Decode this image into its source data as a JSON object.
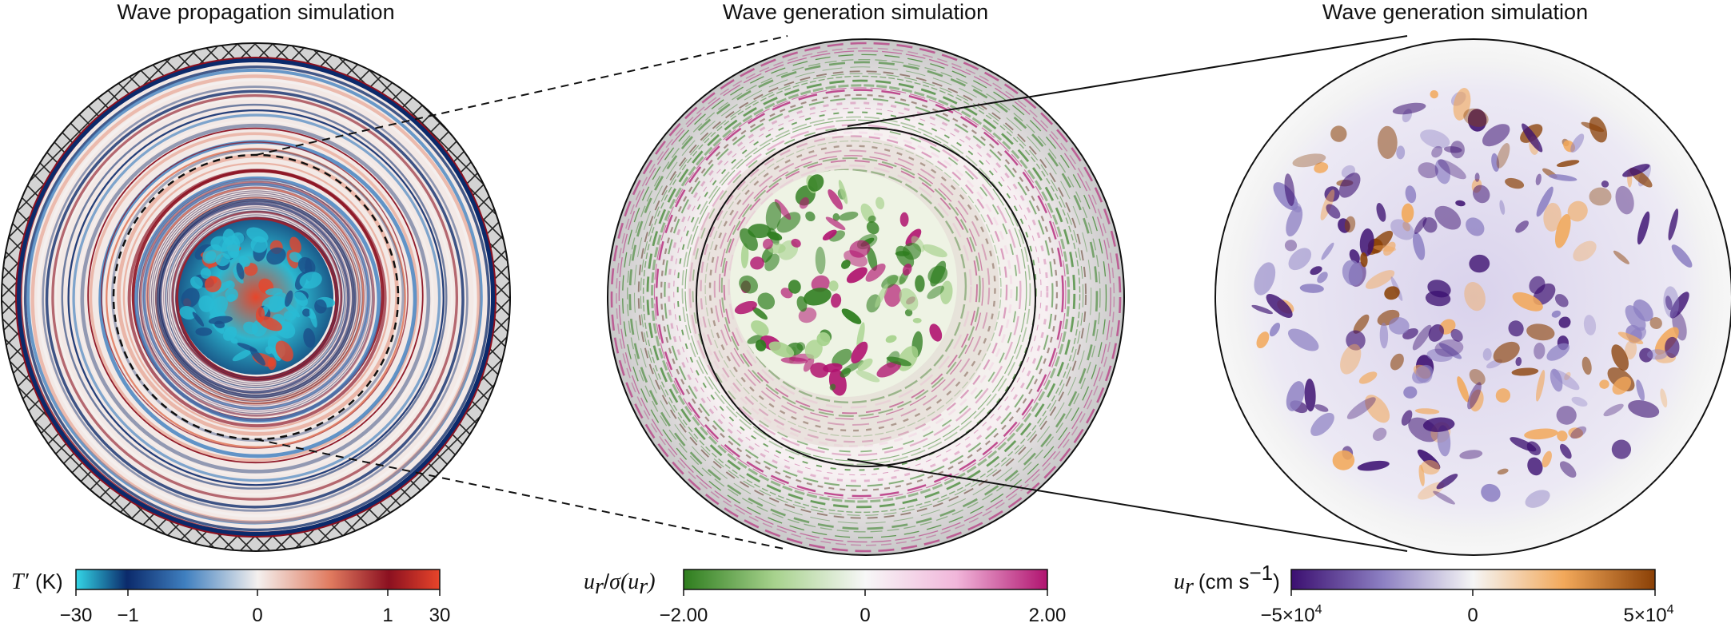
{
  "panels": [
    {
      "title": "Wave propagation simulation"
    },
    {
      "title": "Wave generation simulation"
    },
    {
      "title": "Wave generation simulation"
    }
  ],
  "colorbars": [
    {
      "var": "T′",
      "unit": "(K)",
      "ticks": [
        "−30",
        "−1",
        "0",
        "1",
        "30"
      ],
      "colors": [
        "#33d6e6",
        "#0b2a6b",
        "#3f7fbf",
        "#f4f0ee",
        "#e07a5f",
        "#8b1020",
        "#e8452a"
      ]
    },
    {
      "var": "u",
      "sub": "r",
      "var2": "σ(u",
      "sub2": "r",
      "close": ")",
      "slash": "/",
      "ticks": [
        "−2.00",
        "0",
        "2.00"
      ],
      "colors": [
        "#2e7d1e",
        "#a7d28d",
        "#f7f7f7",
        "#f1b6da",
        "#b0136f"
      ]
    },
    {
      "var": "u",
      "sub": "r",
      "unit": "(cm s",
      "unit_sup": "−1",
      "unit_close": ")",
      "ticks": [
        {
          "base": "−5×10",
          "exp": "4"
        },
        {
          "base": "0",
          "exp": ""
        },
        {
          "base": "5×10",
          "exp": "4"
        }
      ],
      "colors": [
        "#3b0f70",
        "#8c7fc2",
        "#f5f5f5",
        "#f2a85a",
        "#8a4006"
      ]
    }
  ]
}
